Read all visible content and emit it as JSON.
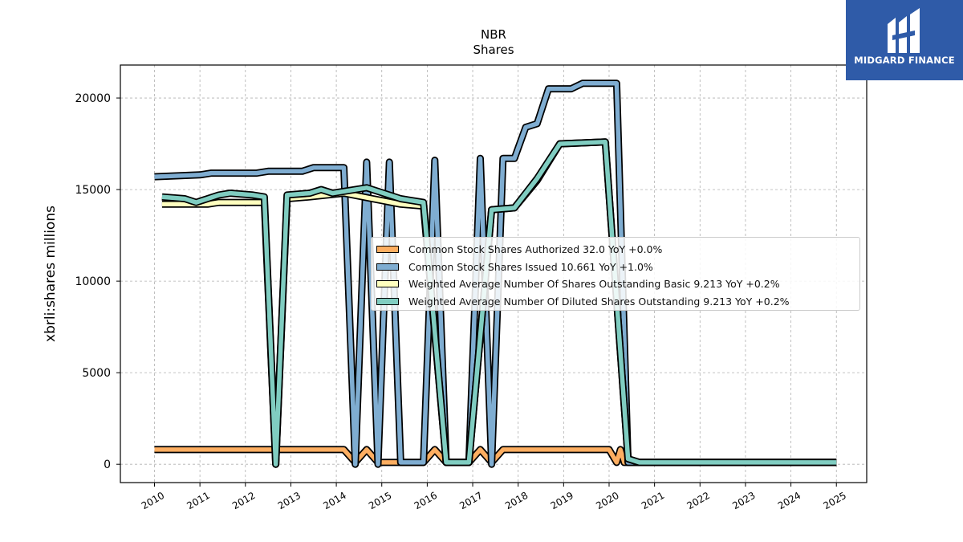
{
  "brand": {
    "name": "MIDGARD FINANCE",
    "icon": "midgard-logo-icon",
    "background": "#2f5ba8"
  },
  "chart_data": {
    "type": "line",
    "title": "NBR",
    "subtitle": "Shares",
    "ylabel": "xbrli:shares millions",
    "xlabel": "",
    "x_ticks": [
      "2010",
      "2011",
      "2012",
      "2013",
      "2014",
      "2015",
      "2016",
      "2017",
      "2018",
      "2019",
      "2020",
      "2021",
      "2022",
      "2023",
      "2024",
      "2025"
    ],
    "xlim": [
      "2009-04-01",
      "2025-09-01"
    ],
    "ylim": [
      -1000,
      21800
    ],
    "y_ticks": [
      0,
      5000,
      10000,
      15000,
      20000
    ],
    "grid": true,
    "legend_position": "center-right",
    "series": [
      {
        "name": "Common Stock Shares Authorized",
        "legend_label": "Common Stock Shares Authorized  32.0 YoY +0.0%",
        "color": "#fdae61",
        "points": [
          [
            "2010-01-01",
            800
          ],
          [
            "2014-03-01",
            800
          ],
          [
            "2014-06-01",
            100
          ],
          [
            "2014-09-01",
            800
          ],
          [
            "2014-12-01",
            100
          ],
          [
            "2015-12-01",
            100
          ],
          [
            "2016-03-01",
            800
          ],
          [
            "2016-06-01",
            100
          ],
          [
            "2016-12-01",
            100
          ],
          [
            "2017-03-01",
            800
          ],
          [
            "2017-06-01",
            100
          ],
          [
            "2017-09-01",
            800
          ],
          [
            "2020-01-01",
            800
          ],
          [
            "2020-03-01",
            100
          ],
          [
            "2020-04-01",
            800
          ],
          [
            "2020-05-01",
            100
          ],
          [
            "2025-01-01",
            100
          ]
        ]
      },
      {
        "name": "Common Stock Shares Issued",
        "legend_label": "Common Stock Shares Issued  10.661 YoY +1.0%",
        "color": "#7fadd1",
        "points": [
          [
            "2010-01-01",
            15700
          ],
          [
            "2011-01-01",
            15800
          ],
          [
            "2011-04-01",
            15900
          ],
          [
            "2012-04-01",
            15900
          ],
          [
            "2012-07-01",
            16000
          ],
          [
            "2013-04-01",
            16000
          ],
          [
            "2013-07-01",
            16200
          ],
          [
            "2014-03-01",
            16200
          ],
          [
            "2014-06-01",
            0
          ],
          [
            "2014-09-01",
            16500
          ],
          [
            "2014-12-01",
            0
          ],
          [
            "2015-03-01",
            16500
          ],
          [
            "2015-06-01",
            100
          ],
          [
            "2015-12-01",
            100
          ],
          [
            "2016-03-01",
            16600
          ],
          [
            "2016-06-01",
            100
          ],
          [
            "2016-12-01",
            100
          ],
          [
            "2017-03-01",
            16700
          ],
          [
            "2017-06-01",
            0
          ],
          [
            "2017-09-01",
            16700
          ],
          [
            "2017-12-01",
            16700
          ],
          [
            "2018-03-01",
            18400
          ],
          [
            "2018-06-01",
            18600
          ],
          [
            "2018-09-01",
            20500
          ],
          [
            "2019-03-01",
            20500
          ],
          [
            "2019-06-01",
            20800
          ],
          [
            "2020-03-01",
            20800
          ],
          [
            "2020-06-01",
            100
          ],
          [
            "2025-01-01",
            100
          ]
        ]
      },
      {
        "name": "Weighted Average Number Of Shares Outstanding Basic",
        "legend_label": "Weighted Average Number Of Shares Outstanding Basic  9.213 YoY +0.2%",
        "color": "#ffffbf",
        "points": [
          [
            "2010-03-01",
            14200
          ],
          [
            "2011-03-01",
            14200
          ],
          [
            "2011-06-01",
            14300
          ],
          [
            "2012-06-01",
            14300
          ],
          [
            "2012-09-01",
            0
          ],
          [
            "2012-12-01",
            14500
          ],
          [
            "2013-06-01",
            14600
          ],
          [
            "2014-03-01",
            14800
          ],
          [
            "2015-06-01",
            14200
          ],
          [
            "2015-12-01",
            14100
          ],
          [
            "2016-06-01",
            100
          ],
          [
            "2016-12-01",
            100
          ],
          [
            "2017-06-01",
            13900
          ],
          [
            "2017-12-01",
            14000
          ],
          [
            "2018-06-01",
            15500
          ],
          [
            "2018-12-01",
            17500
          ],
          [
            "2019-12-01",
            17600
          ],
          [
            "2020-06-01",
            300
          ],
          [
            "2020-09-01",
            100
          ],
          [
            "2025-01-01",
            100
          ]
        ]
      },
      {
        "name": "Weighted Average Number Of Diluted Shares Outstanding",
        "legend_label": "Weighted Average Number Of Diluted Shares Outstanding  9.213 YoY +0.2%",
        "color": "#80cdc1",
        "points": [
          [
            "2010-03-01",
            14600
          ],
          [
            "2010-09-01",
            14500
          ],
          [
            "2010-12-01",
            14300
          ],
          [
            "2011-06-01",
            14700
          ],
          [
            "2011-09-01",
            14800
          ],
          [
            "2012-03-01",
            14700
          ],
          [
            "2012-06-01",
            14600
          ],
          [
            "2012-09-01",
            0
          ],
          [
            "2012-12-01",
            14700
          ],
          [
            "2013-06-01",
            14800
          ],
          [
            "2013-09-01",
            15000
          ],
          [
            "2013-12-01",
            14800
          ],
          [
            "2014-09-01",
            15100
          ],
          [
            "2015-06-01",
            14500
          ],
          [
            "2015-12-01",
            14300
          ],
          [
            "2016-06-01",
            100
          ],
          [
            "2016-12-01",
            100
          ],
          [
            "2017-06-01",
            13900
          ],
          [
            "2017-12-01",
            14000
          ],
          [
            "2018-06-01",
            15600
          ],
          [
            "2018-12-01",
            17500
          ],
          [
            "2019-12-01",
            17600
          ],
          [
            "2020-06-01",
            300
          ],
          [
            "2020-09-01",
            100
          ],
          [
            "2025-01-01",
            100
          ]
        ]
      }
    ]
  }
}
